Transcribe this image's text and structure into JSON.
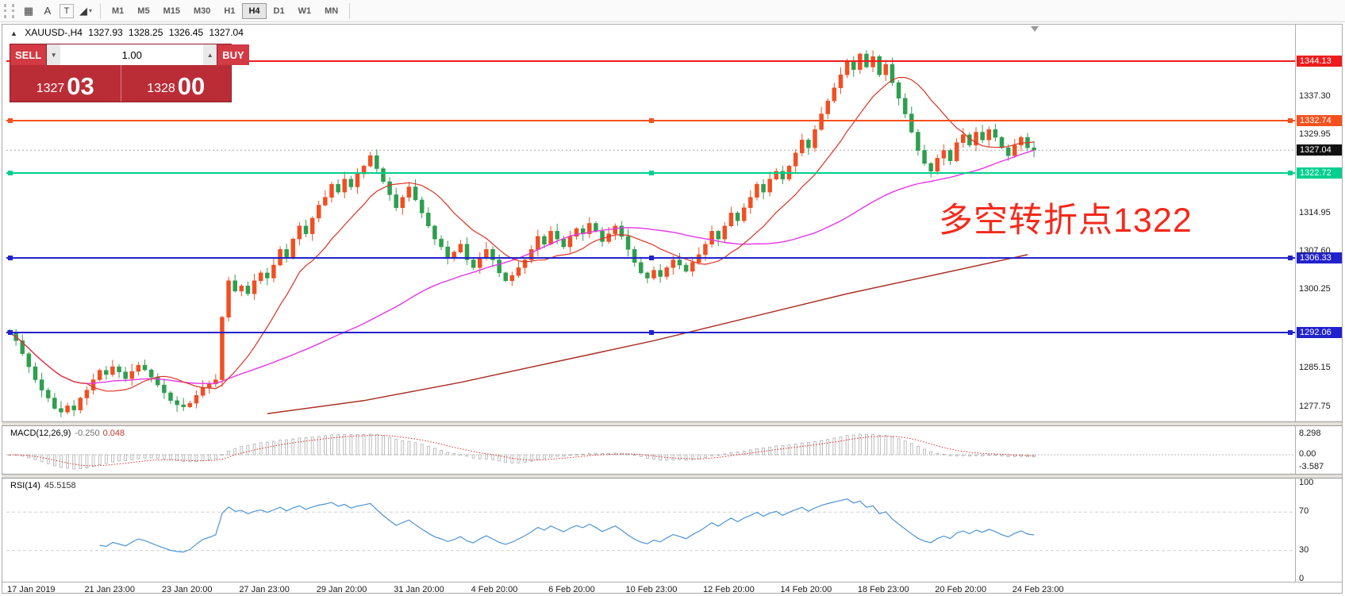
{
  "toolbar": {
    "tools": [
      {
        "name": "grid-icon",
        "glyph": "▦"
      },
      {
        "name": "cursor-tool-icon",
        "glyph": "A"
      },
      {
        "name": "text-tool-icon",
        "glyph": "T"
      },
      {
        "name": "line-tools-icon",
        "glyph": "◢",
        "chevron": "▾"
      }
    ],
    "timeframes": [
      "M1",
      "M5",
      "M15",
      "M30",
      "H1",
      "H4",
      "D1",
      "W1",
      "MN"
    ],
    "active_timeframe": "H4"
  },
  "chart": {
    "collapse_glyph": "▲",
    "symbol": "XAUUSD-,H4",
    "ohlc": {
      "open": "1327.93",
      "high": "1328.25",
      "low": "1326.45",
      "close": "1327.04"
    },
    "annotation": "多空转折点1322",
    "annotation_color": "#f5291b",
    "one_click": {
      "sell_label": "SELL",
      "buy_label": "BUY",
      "volume": "1.00",
      "sell_price_main": "1327",
      "sell_price_pips": "03",
      "buy_price_main": "1328",
      "buy_price_pips": "00",
      "colors": {
        "button": "#d23a44",
        "panel": "#ba2d37",
        "border": "#8e1f27"
      }
    },
    "levels": [
      {
        "label": "1344.13",
        "color": "#ee1c1c",
        "handles": false
      },
      {
        "label": "1332.74",
        "color": "#f4511e",
        "handles": true
      },
      {
        "label": "1322.72",
        "color": "#00d08c",
        "handles": true
      },
      {
        "label": "1306.33",
        "color": "#2222cc",
        "handles": true
      },
      {
        "label": "1292.06",
        "color": "#2222cc",
        "handles": true
      }
    ],
    "current_price": {
      "label": "1327.04",
      "badge_color": "#111111"
    },
    "price_axis_ticks": [
      "1337.30",
      "1329.95",
      "1314.95",
      "1307.60",
      "1300.25",
      "1285.15",
      "1277.75"
    ],
    "time_labels": [
      {
        "i": 0,
        "t": "17 Jan 2019"
      },
      {
        "i": 12,
        "t": "21 Jan 23:00"
      },
      {
        "i": 24,
        "t": "23 Jan 20:00"
      },
      {
        "i": 36,
        "t": "27 Jan 23:00"
      },
      {
        "i": 48,
        "t": "29 Jan 20:00"
      },
      {
        "i": 60,
        "t": "31 Jan 20:00"
      },
      {
        "i": 72,
        "t": "4 Feb 20:00"
      },
      {
        "i": 84,
        "t": "6 Feb 20:00"
      },
      {
        "i": 96,
        "t": "10 Feb 23:00"
      },
      {
        "i": 108,
        "t": "12 Feb 20:00"
      },
      {
        "i": 120,
        "t": "14 Feb 20:00"
      },
      {
        "i": 132,
        "t": "18 Feb 23:00"
      },
      {
        "i": 144,
        "t": "20 Feb 20:00"
      },
      {
        "i": 156,
        "t": "24 Feb 23:00"
      }
    ]
  },
  "chart_data": {
    "type": "candlestick",
    "symbol": "XAUUSD",
    "timeframe": "H4",
    "title": "XAUUSD-,H4 1327.93 1328.25 1326.45 1327.04",
    "visible_price_range": [
      1277.75,
      1344.13
    ],
    "first_open": 1292.5,
    "closes": [
      1292,
      1290.5,
      1288,
      1285.5,
      1283,
      1281,
      1279.5,
      1277.5,
      1276.8,
      1278,
      1277.2,
      1279.5,
      1281,
      1283,
      1284.8,
      1284,
      1285.5,
      1284.5,
      1283.2,
      1284.6,
      1285.8,
      1284.9,
      1283.5,
      1282,
      1280.5,
      1279,
      1278.2,
      1277.8,
      1278.5,
      1280,
      1281.5,
      1282.2,
      1283,
      1295,
      1302,
      1300,
      1301,
      1299.5,
      1302,
      1303.5,
      1302.5,
      1305,
      1308,
      1306.5,
      1310,
      1312.5,
      1311,
      1314,
      1316.5,
      1318,
      1320.5,
      1319,
      1321.5,
      1320,
      1322.5,
      1324,
      1326,
      1323.5,
      1321,
      1318.5,
      1316,
      1318,
      1320,
      1317.5,
      1315,
      1312.5,
      1310,
      1308.5,
      1306.5,
      1307.5,
      1309,
      1306,
      1304.5,
      1306.5,
      1308,
      1306,
      1303.5,
      1302,
      1303,
      1304.5,
      1306,
      1308,
      1310.5,
      1309,
      1311.5,
      1310,
      1308.5,
      1310.5,
      1312,
      1311,
      1313,
      1311.5,
      1309.5,
      1311,
      1312.5,
      1310.5,
      1308,
      1305.5,
      1303.5,
      1302.5,
      1304,
      1302.8,
      1304.5,
      1306,
      1305,
      1303.8,
      1305.5,
      1307,
      1309,
      1311.5,
      1310,
      1312.5,
      1315,
      1313.5,
      1316,
      1318,
      1320.5,
      1319,
      1321.5,
      1323,
      1321.5,
      1324,
      1326.5,
      1329,
      1327.5,
      1331,
      1334,
      1336.5,
      1339,
      1341.5,
      1344,
      1342.5,
      1345.5,
      1343,
      1345,
      1341.5,
      1343.5,
      1340,
      1337,
      1334,
      1330.5,
      1327,
      1324.5,
      1323,
      1325.5,
      1327,
      1325,
      1328.5,
      1330,
      1328,
      1330.5,
      1329,
      1331,
      1329.5,
      1327.5,
      1326,
      1328,
      1329.5,
      1327.5,
      1327.04
    ],
    "ma_fast_period": 13,
    "ma_slow_period": 55,
    "ma_fast_color": "#dd3222",
    "ma_slow_color": "#e636e6",
    "ma_long_color": "#a93226",
    "long_ma_points": [
      [
        40,
        1276.5
      ],
      [
        55,
        1279
      ],
      [
        70,
        1282.5
      ],
      [
        85,
        1286.5
      ],
      [
        100,
        1290.5
      ],
      [
        115,
        1295
      ],
      [
        130,
        1299.5
      ],
      [
        145,
        1303.5
      ],
      [
        158,
        1307
      ]
    ],
    "up_color": "#f04f23",
    "down_color": "#2f9e4f"
  },
  "macd": {
    "header": "MACD(12,26,9)",
    "value_main": "-0.250",
    "value_signal": "0.048",
    "params": [
      12,
      26,
      9
    ],
    "axis": [
      "8.298",
      "0.00",
      "-3.587"
    ]
  },
  "rsi": {
    "header": "RSI(14)",
    "value": "45.5158",
    "period": 14,
    "axis": [
      "100",
      "70",
      "30",
      "0"
    ],
    "level_lines": [
      70,
      30
    ],
    "line_color": "#4f94d4"
  }
}
